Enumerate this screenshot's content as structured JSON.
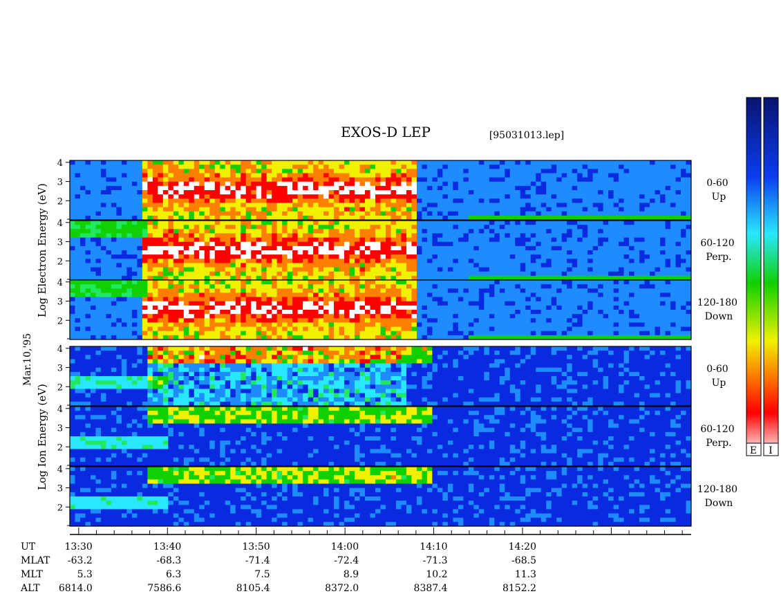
{
  "title": "EXOS-D LEP",
  "file_label": "[95031013.lep]",
  "date_label": "Mar.10,'95",
  "electron_ylabel": "Log   Electron   Energy (eV)",
  "ion_ylabel": "Log   Ion   Energy (eV)",
  "colorbar_labels": [
    "E",
    "I"
  ],
  "chart_data": {
    "type": "heatmap",
    "panels": [
      {
        "species": "Electron",
        "pitch_range": "0-60",
        "direction": "Up",
        "yticks": [
          "4",
          "3",
          "2"
        ]
      },
      {
        "species": "Electron",
        "pitch_range": "60-120",
        "direction": "Perp.",
        "yticks": [
          "4",
          "3",
          "2"
        ]
      },
      {
        "species": "Electron",
        "pitch_range": "120-180",
        "direction": "Down",
        "yticks": [
          "4",
          "3",
          "2"
        ]
      },
      {
        "species": "Ion",
        "pitch_range": "0-60",
        "direction": "Up",
        "yticks": [
          "4",
          "3",
          "2"
        ]
      },
      {
        "species": "Ion",
        "pitch_range": "60-120",
        "direction": "Perp.",
        "yticks": [
          "4",
          "3",
          "2"
        ]
      },
      {
        "species": "Ion",
        "pitch_range": "120-180",
        "direction": "Down",
        "yticks": [
          "4",
          "3",
          "2"
        ]
      }
    ],
    "ylim": [
      1,
      4.1
    ],
    "xlim_minutes_after_1330": [
      -1,
      69
    ],
    "row_labels": [
      "UT",
      "MLAT",
      "MLT",
      "ALT"
    ],
    "time_axis": [
      {
        "UT": "13:30",
        "MLAT": "-63.2",
        "MLT": "5.3",
        "ALT": "6814.0"
      },
      {
        "UT": "13:40",
        "MLAT": "-68.3",
        "MLT": "6.3",
        "ALT": "7586.6"
      },
      {
        "UT": "13:50",
        "MLAT": "-71.4",
        "MLT": "7.5",
        "ALT": "8105.4"
      },
      {
        "UT": "14:00",
        "MLAT": "-72.4",
        "MLT": "8.9",
        "ALT": "8372.0"
      },
      {
        "UT": "14:10",
        "MLAT": "-71.3",
        "MLT": "10.2",
        "ALT": "8387.4"
      },
      {
        "UT": "14:20",
        "MLAT": "-68.5",
        "MLT": "11.3",
        "ALT": "8152.2"
      }
    ],
    "colorscale": [
      "#0a1470",
      "#0a2ae0",
      "#1e8cff",
      "#28e8ff",
      "#20e860",
      "#10d000",
      "#f0f000",
      "#ff8000",
      "#ff0000",
      "#ffffff"
    ]
  }
}
